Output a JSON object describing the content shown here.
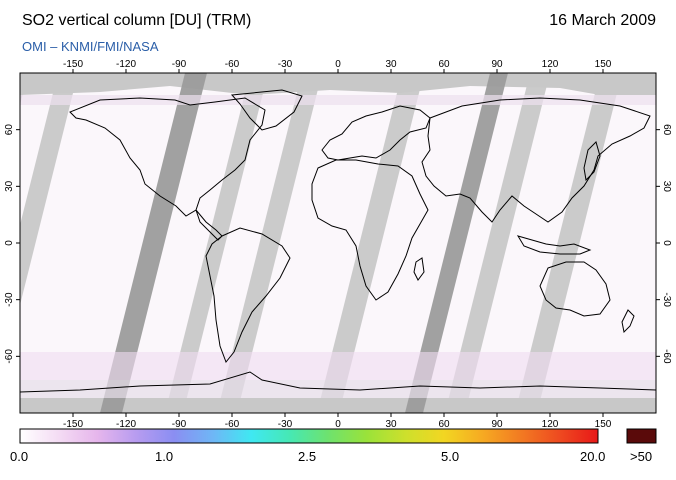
{
  "title": "SO2 vertical column [DU] (TRM)",
  "date": "16 March 2009",
  "credit": "OMI  –  KNMI/FMI/NASA",
  "map": {
    "lon_ticks": [
      -150,
      -120,
      -90,
      -60,
      -30,
      0,
      30,
      60,
      90,
      120,
      150
    ],
    "lat_ticks": [
      60,
      30,
      0,
      -30,
      -60
    ],
    "lon_range": [
      -180,
      180
    ],
    "lat_range": [
      -90,
      90
    ]
  },
  "colorbar": {
    "labels": [
      "0.0",
      "1.0",
      "2.5",
      "5.0",
      "20.0"
    ],
    "overflow_label": ">50",
    "colors": [
      "#ffffff",
      "#f4dcf4",
      "#e6b6ec",
      "#b89cf0",
      "#8a8ef2",
      "#6fb6f6",
      "#3fe8f2",
      "#46e8b4",
      "#6ee26e",
      "#9ae23a",
      "#cde02c",
      "#f2d622",
      "#f6aa22",
      "#f27a22",
      "#ee4a20",
      "#e81818"
    ],
    "overflow_color": "#5a0a0a"
  }
}
